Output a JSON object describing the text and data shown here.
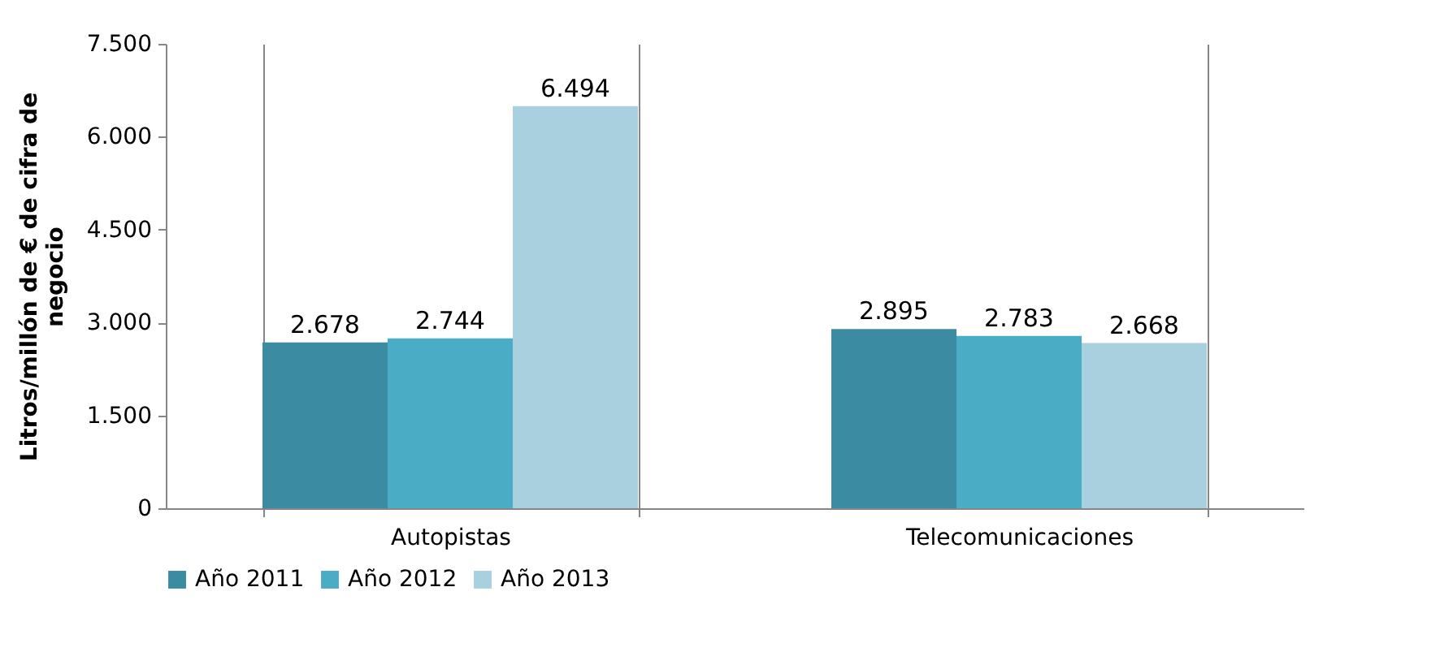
{
  "chart_data": {
    "type": "bar",
    "ylabel": "Litros/millón de € de cifra de negocio",
    "categories": [
      "Autopistas",
      "Telecomunicaciones"
    ],
    "series": [
      {
        "name": "Año 2011",
        "color": "#3b8ca3",
        "values": [
          2678,
          2895
        ],
        "value_labels": [
          "2.678",
          "2.895"
        ]
      },
      {
        "name": "Año 2012",
        "color": "#4bacc6",
        "values": [
          2744,
          2783
        ],
        "value_labels": [
          "2.744",
          "2.783"
        ]
      },
      {
        "name": "Año 2013",
        "color": "#a9d0de",
        "values": [
          6494,
          2668
        ],
        "value_labels": [
          "6.494",
          "2.668"
        ]
      }
    ],
    "ylim": [
      0,
      7500
    ],
    "yticks": [
      {
        "value": 0,
        "label": "0"
      },
      {
        "value": 1500,
        "label": "1.500"
      },
      {
        "value": 3000,
        "label": "3.000"
      },
      {
        "value": 4500,
        "label": "4.500"
      },
      {
        "value": 6000,
        "label": "6.000"
      },
      {
        "value": 7500,
        "label": "7.500"
      }
    ],
    "grid": "x",
    "legend": "bottom"
  }
}
